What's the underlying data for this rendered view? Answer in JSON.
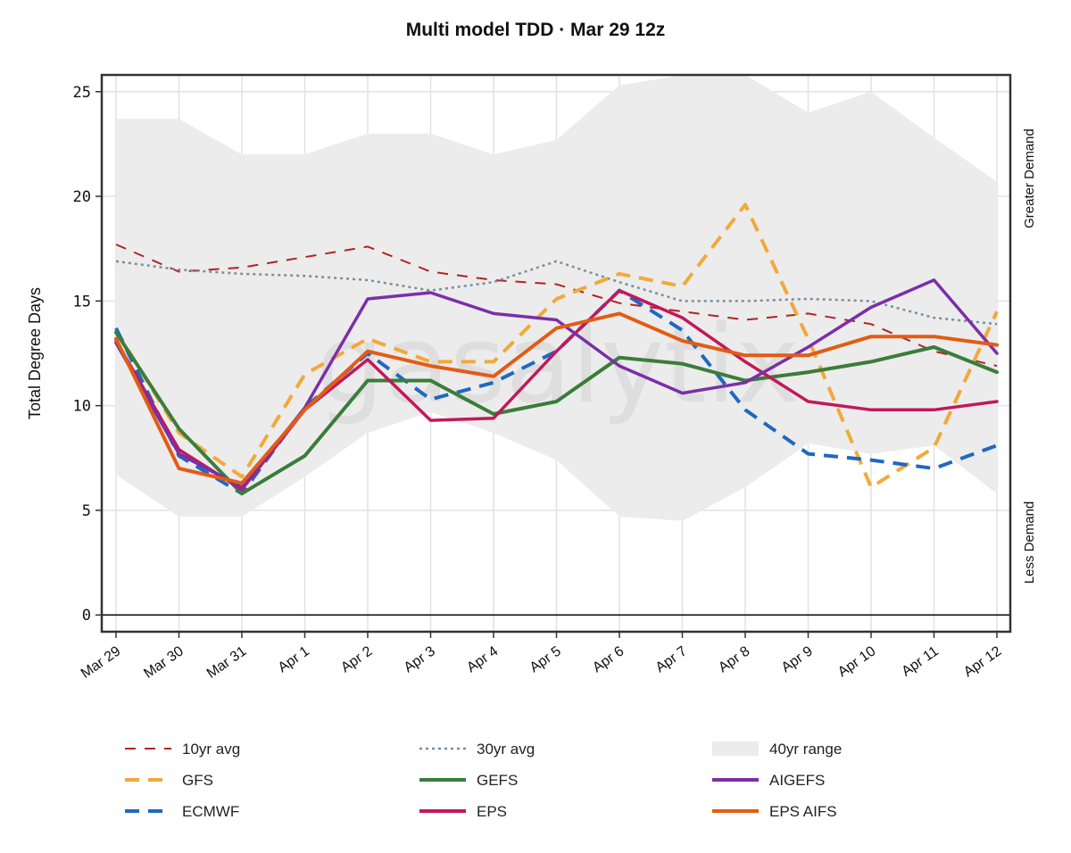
{
  "watermark": "gasalytix",
  "colors": {
    "avg10": "#b22222",
    "avg30": "#7a8e9e",
    "range40": "#ececec",
    "GFS": "#f2a93b",
    "ECMWF": "#2068c0",
    "GEFS": "#3a7d3a",
    "EPS": "#c2185b",
    "AIGEFS": "#7b2fa8",
    "EPS_AIFS": "#e25c14"
  },
  "chart_data": {
    "type": "line",
    "title": "Multi model TDD · Mar 29 12z",
    "ylabel": "Total Degree Days",
    "xlabel": "",
    "ylim": [
      -0.8,
      25.8
    ],
    "yticks": [
      0,
      5,
      10,
      15,
      20,
      25
    ],
    "categories": [
      "Mar 29",
      "Mar 30",
      "Mar 31",
      "Apr 1",
      "Apr 2",
      "Apr 3",
      "Apr 4",
      "Apr 5",
      "Apr 6",
      "Apr 7",
      "Apr 8",
      "Apr 9",
      "Apr 10",
      "Apr 11",
      "Apr 12"
    ],
    "right_labels": {
      "top": "Greater Demand",
      "bottom": "Less Demand"
    },
    "grid": true,
    "legend_position": "bottom",
    "band": {
      "name": "40yr range",
      "upper": [
        23.7,
        23.7,
        22.0,
        22.0,
        23.0,
        23.0,
        22.0,
        22.7,
        25.3,
        26.0,
        25.8,
        24.0,
        25.0,
        22.8,
        20.7
      ],
      "lower": [
        6.7,
        4.7,
        4.7,
        6.6,
        8.7,
        9.7,
        8.7,
        7.4,
        4.7,
        4.5,
        6.1,
        8.2,
        7.7,
        8.1,
        5.8
      ]
    },
    "series": [
      {
        "name": "10yr avg",
        "key": "avg10",
        "dash": "12 10",
        "width": 2,
        "values": [
          17.7,
          16.4,
          16.6,
          17.1,
          17.6,
          16.4,
          16.0,
          15.8,
          14.9,
          14.5,
          14.1,
          14.4,
          13.9,
          12.6,
          11.9
        ]
      },
      {
        "name": "30yr avg",
        "key": "avg30",
        "dash": "3 4",
        "width": 2.5,
        "values": [
          16.9,
          16.5,
          16.3,
          16.2,
          16.0,
          15.5,
          15.9,
          16.9,
          15.9,
          15.0,
          15.0,
          15.1,
          15.0,
          14.2,
          13.9
        ]
      },
      {
        "name": "GFS",
        "key": "GFS",
        "dash": "16 10",
        "width": 4,
        "values": [
          13.6,
          8.7,
          6.6,
          11.5,
          13.2,
          12.1,
          12.1,
          15.1,
          16.3,
          15.7,
          19.6,
          13.2,
          6.1,
          8.0,
          14.5
        ]
      },
      {
        "name": "ECMWF",
        "key": "ECMWF",
        "dash": "16 10",
        "width": 4,
        "values": [
          13.7,
          7.6,
          5.8,
          9.9,
          12.5,
          10.3,
          11.1,
          12.6,
          15.5,
          13.6,
          9.8,
          7.7,
          7.4,
          7.0,
          8.1
        ]
      },
      {
        "name": "GEFS",
        "key": "GEFS",
        "dash": "",
        "width": 4,
        "values": [
          13.5,
          8.9,
          5.8,
          7.6,
          11.2,
          11.2,
          9.6,
          10.2,
          12.3,
          12.0,
          11.2,
          11.6,
          12.1,
          12.8,
          11.6
        ]
      },
      {
        "name": "EPS",
        "key": "EPS",
        "dash": "",
        "width": 3.5,
        "values": [
          13.1,
          7.9,
          6.0,
          9.8,
          12.2,
          9.3,
          9.4,
          12.6,
          15.5,
          14.2,
          12.1,
          10.2,
          9.8,
          9.8,
          10.2
        ]
      },
      {
        "name": "AIGEFS",
        "key": "AIGEFS",
        "dash": "",
        "width": 3.5,
        "values": [
          13.0,
          7.7,
          6.1,
          9.9,
          15.1,
          15.4,
          14.4,
          14.1,
          11.9,
          10.6,
          11.1,
          12.8,
          14.7,
          16.0,
          12.5
        ]
      },
      {
        "name": "EPS AIFS",
        "key": "EPS_AIFS",
        "dash": "",
        "width": 4,
        "values": [
          13.2,
          7.0,
          6.3,
          9.8,
          12.6,
          11.9,
          11.4,
          13.7,
          14.4,
          13.1,
          12.4,
          12.4,
          13.3,
          13.3,
          12.9
        ]
      }
    ],
    "legend": [
      {
        "label": "10yr avg",
        "key": "avg10",
        "kind": "line",
        "dash": "12 10",
        "width": 2
      },
      {
        "label": "30yr avg",
        "key": "avg30",
        "kind": "line",
        "dash": "3 4",
        "width": 2.5
      },
      {
        "label": "40yr range",
        "key": "range40",
        "kind": "band"
      },
      {
        "label": "GFS",
        "key": "GFS",
        "kind": "line",
        "dash": "16 10",
        "width": 4
      },
      {
        "label": "GEFS",
        "key": "GEFS",
        "kind": "line",
        "dash": "",
        "width": 4
      },
      {
        "label": "AIGEFS",
        "key": "AIGEFS",
        "kind": "line",
        "dash": "",
        "width": 4
      },
      {
        "label": "ECMWF",
        "key": "ECMWF",
        "kind": "line",
        "dash": "16 10",
        "width": 4
      },
      {
        "label": "EPS",
        "key": "EPS",
        "kind": "line",
        "dash": "",
        "width": 4
      },
      {
        "label": "EPS AIFS",
        "key": "EPS_AIFS",
        "kind": "line",
        "dash": "",
        "width": 4
      }
    ]
  }
}
